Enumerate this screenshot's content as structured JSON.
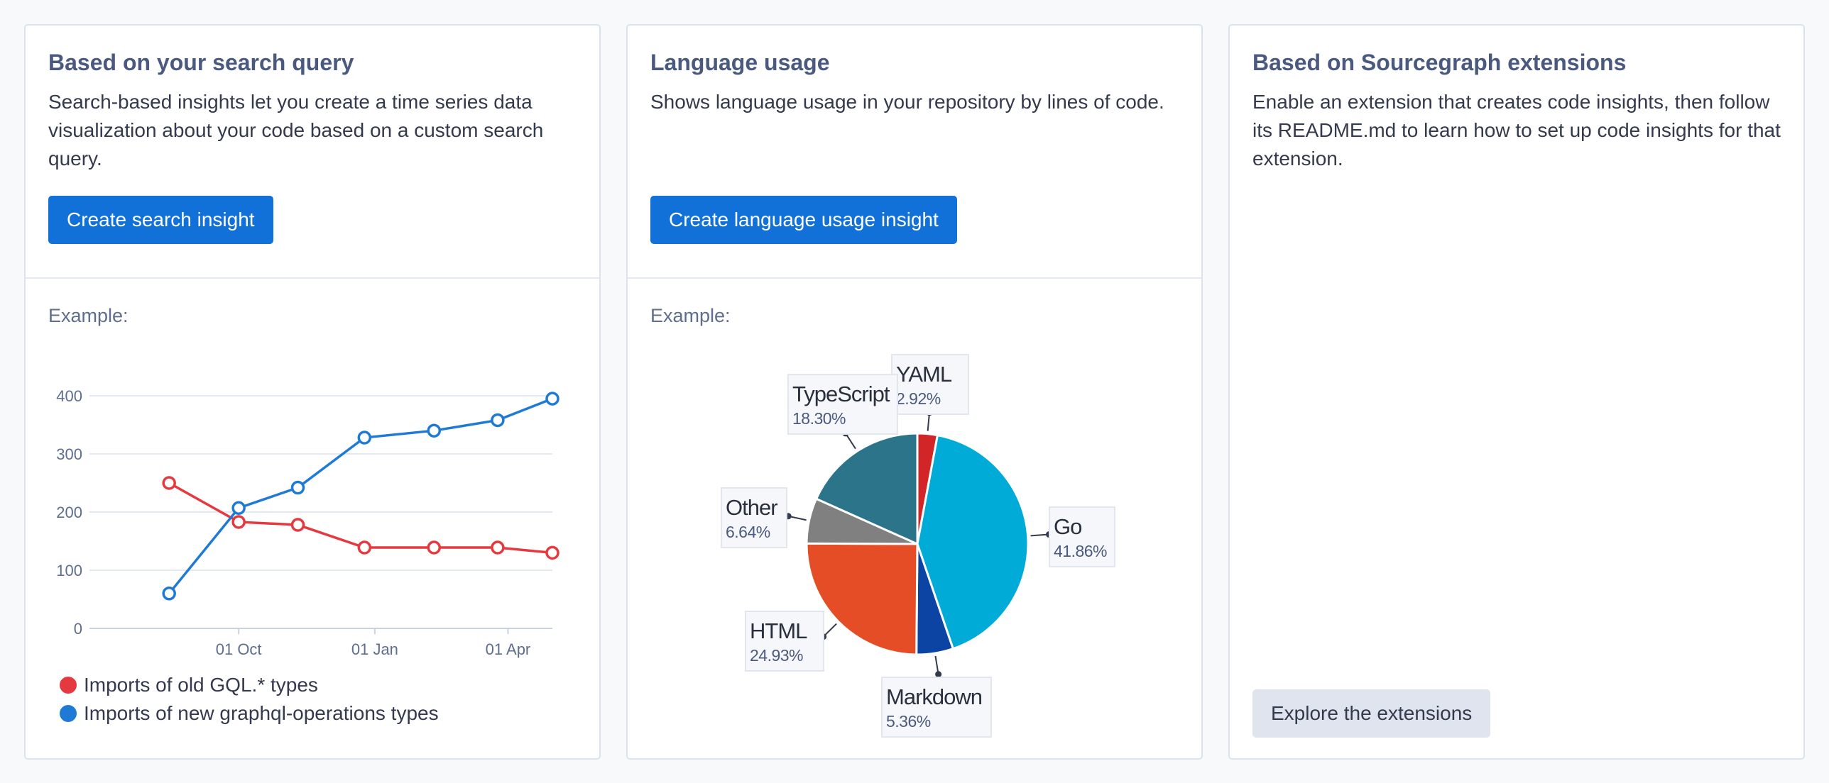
{
  "cards": {
    "search": {
      "title": "Based on your search query",
      "description": "Search-based insights let you create a time series data visualization about your code based on a custom search query.",
      "button": "Create search insight",
      "example_label": "Example:"
    },
    "language": {
      "title": "Language usage",
      "description": "Shows language usage in your repository by lines of code.",
      "button": "Create language usage insight",
      "example_label": "Example:"
    },
    "extensions": {
      "title": "Based on Sourcegraph extensions",
      "description": "Enable an extension that creates code insights, then follow its README.md to learn how to set up code insights for that extension.",
      "button": "Explore the extensions"
    }
  },
  "chart_data": [
    {
      "type": "line",
      "x": [
        "2021-08-15",
        "2021-10-01",
        "2021-11-10",
        "2021-12-25",
        "2022-02-10",
        "2022-03-25",
        "2022-05-01"
      ],
      "x_ticks": [
        "01 Oct",
        "01 Jan",
        "01 Apr"
      ],
      "y_ticks": [
        0,
        100,
        200,
        300,
        400
      ],
      "ylim": [
        0,
        400
      ],
      "grid": true,
      "series": [
        {
          "name": "Imports of old GQL.* types",
          "color": "#e5393f",
          "values": [
            250,
            183,
            178,
            139,
            139,
            139,
            130
          ]
        },
        {
          "name": "Imports of new graphql-operations types",
          "color": "#1f7ad6",
          "values": [
            60,
            207,
            242,
            328,
            340,
            358,
            395
          ]
        }
      ],
      "legend": "bottom"
    },
    {
      "type": "pie",
      "slices": [
        {
          "name": "YAML",
          "value": 2.92,
          "label": "2.92%",
          "color": "#d12528"
        },
        {
          "name": "Go",
          "value": 41.86,
          "label": "41.86%",
          "color": "#00acd7"
        },
        {
          "name": "Markdown",
          "value": 5.36,
          "label": "5.36%",
          "color": "#0b44a3"
        },
        {
          "name": "HTML",
          "value": 24.93,
          "label": "24.93%",
          "color": "#e44d26"
        },
        {
          "name": "Other",
          "value": 6.64,
          "label": "6.64%",
          "color": "#808080"
        },
        {
          "name": "TypeScript",
          "value": 18.3,
          "label": "18.30%",
          "color": "#2b7489"
        }
      ]
    }
  ]
}
